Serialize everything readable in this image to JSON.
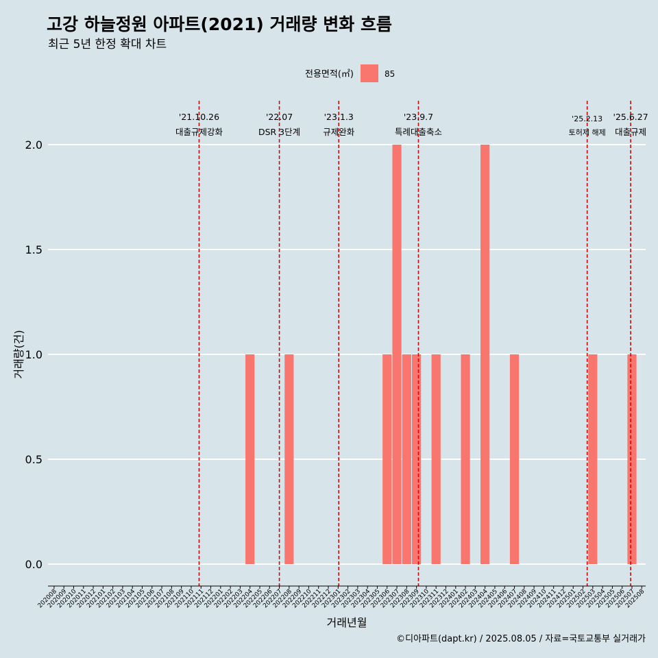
{
  "chart_data": {
    "type": "bar",
    "title": "고강 하늘정원 아파트(2021) 거래량 변화 흐름",
    "subtitle": "최근 5년 한정 확대 차트",
    "xlabel": "거래년월",
    "ylabel": "거래량(건)",
    "ylim": [
      -0.08,
      2.2
    ],
    "yticks": [
      0.0,
      0.5,
      1.0,
      1.5,
      2.0
    ],
    "ytick_labels": [
      "0.0",
      "0.5",
      "1.0",
      "1.5",
      "2.0"
    ],
    "grid": true,
    "legend": {
      "title": "전용면적(㎡)",
      "position": "top",
      "entries": [
        {
          "label": "85",
          "color": "#f8766d"
        }
      ]
    },
    "categories": [
      "202008",
      "202009",
      "202010",
      "202011",
      "202012",
      "202101",
      "202102",
      "202103",
      "202104",
      "202105",
      "202106",
      "202107",
      "202108",
      "202109",
      "202110",
      "202111",
      "202112",
      "202201",
      "202202",
      "202203",
      "202204",
      "202205",
      "202206",
      "202207",
      "202208",
      "202209",
      "202210",
      "202211",
      "202212",
      "202301",
      "202302",
      "202303",
      "202304",
      "202305",
      "202306",
      "202307",
      "202308",
      "202309",
      "202310",
      "202311",
      "202312",
      "202401",
      "202402",
      "202403",
      "202404",
      "202405",
      "202406",
      "202407",
      "202408",
      "202409",
      "202410",
      "202411",
      "202412",
      "202501",
      "202502",
      "202503",
      "202504",
      "202505",
      "202506",
      "202507",
      "202508"
    ],
    "series": [
      {
        "name": "85",
        "color": "#f8766d",
        "values": [
          0,
          0,
          0,
          0,
          0,
          0,
          0,
          0,
          0,
          0,
          0,
          0,
          0,
          0,
          0,
          0,
          0,
          0,
          0,
          0,
          1,
          0,
          0,
          0,
          1,
          0,
          0,
          0,
          0,
          0,
          0,
          0,
          0,
          0,
          1,
          2,
          1,
          1,
          0,
          1,
          0,
          0,
          1,
          0,
          2,
          0,
          0,
          1,
          0,
          0,
          0,
          0,
          0,
          0,
          0,
          1,
          0,
          0,
          0,
          1,
          0
        ]
      }
    ],
    "annotations": [
      {
        "x": "2021-10-26",
        "line1": "'21.10.26",
        "line2": "대출규제강화"
      },
      {
        "x": "2022-07-01",
        "line1": "'22.07",
        "line2": "DSR 3단계"
      },
      {
        "x": "2023-01-03",
        "line1": "'23.1.3",
        "line2": "규제완화"
      },
      {
        "x": "2023-09-07",
        "line1": "'23.9.7",
        "line2": "특례대출축소"
      },
      {
        "x": "2025-02-13",
        "line1": "'25.2.13",
        "line2": "토허제 해제"
      },
      {
        "x": "2025-06-27",
        "line1": "'25.6.27",
        "line2": "대출규제"
      }
    ],
    "annotation_color": "#e00000"
  },
  "caption": "©디아파트(dapt.kr) / 2025.08.05 / 자료=국토교통부 실거래가"
}
